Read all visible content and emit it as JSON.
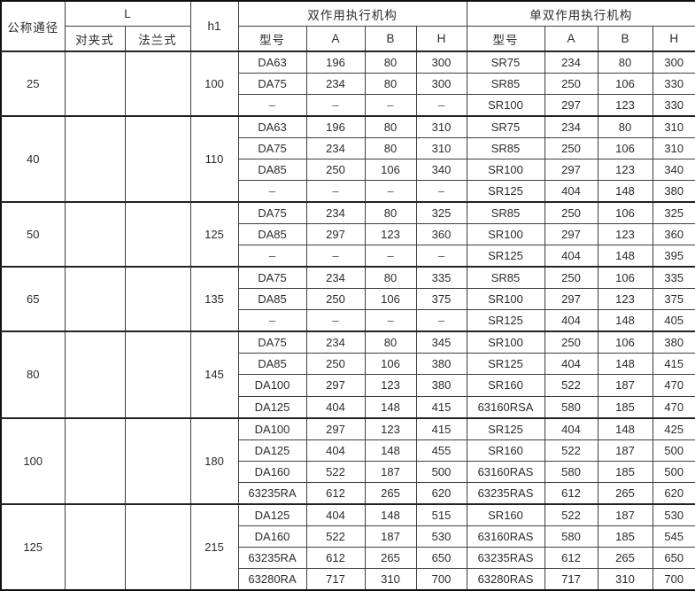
{
  "table": {
    "dash": "–",
    "header": {
      "col_size": "公称通径",
      "col_L": "L",
      "col_wafer": "对夹式",
      "col_flange": "法兰式",
      "col_h1": "h1",
      "group_double": "双作用执行机构",
      "group_single_double": "单双作用执行机构",
      "sub": [
        "型号",
        "A",
        "B",
        "H"
      ]
    },
    "groups": [
      {
        "size": "25",
        "wafer": "",
        "flange": "",
        "h1": "100",
        "rows": [
          [
            "DA63",
            "196",
            "80",
            "300",
            "SR75",
            "234",
            "80",
            "300"
          ],
          [
            "DA75",
            "234",
            "80",
            "300",
            "SR85",
            "250",
            "106",
            "330"
          ],
          [
            "–",
            "–",
            "–",
            "–",
            "SR100",
            "297",
            "123",
            "330"
          ]
        ]
      },
      {
        "size": "40",
        "wafer": "",
        "flange": "",
        "h1": "110",
        "rows": [
          [
            "DA63",
            "196",
            "80",
            "310",
            "SR75",
            "234",
            "80",
            "310"
          ],
          [
            "DA75",
            "234",
            "80",
            "310",
            "SR85",
            "250",
            "106",
            "310"
          ],
          [
            "DA85",
            "250",
            "106",
            "340",
            "SR100",
            "297",
            "123",
            "340"
          ],
          [
            "–",
            "–",
            "–",
            "–",
            "SR125",
            "404",
            "148",
            "380"
          ]
        ]
      },
      {
        "size": "50",
        "wafer": "",
        "flange": "",
        "h1": "125",
        "rows": [
          [
            "DA75",
            "234",
            "80",
            "325",
            "SR85",
            "250",
            "106",
            "325"
          ],
          [
            "DA85",
            "297",
            "123",
            "360",
            "SR100",
            "297",
            "123",
            "360"
          ],
          [
            "–",
            "–",
            "–",
            "–",
            "SR125",
            "404",
            "148",
            "395"
          ]
        ]
      },
      {
        "size": "65",
        "wafer": "",
        "flange": "",
        "h1": "135",
        "rows": [
          [
            "DA75",
            "234",
            "80",
            "335",
            "SR85",
            "250",
            "106",
            "335"
          ],
          [
            "DA85",
            "250",
            "106",
            "375",
            "SR100",
            "297",
            "123",
            "375"
          ],
          [
            "–",
            "–",
            "–",
            "–",
            "SR125",
            "404",
            "148",
            "405"
          ]
        ]
      },
      {
        "size": "80",
        "wafer": "",
        "flange": "",
        "h1": "145",
        "rows": [
          [
            "DA75",
            "234",
            "80",
            "345",
            "SR100",
            "250",
            "106",
            "380"
          ],
          [
            "DA85",
            "250",
            "106",
            "380",
            "SR125",
            "404",
            "148",
            "415"
          ],
          [
            "DA100",
            "297",
            "123",
            "380",
            "SR160",
            "522",
            "187",
            "470"
          ],
          [
            "DA125",
            "404",
            "148",
            "415",
            "63160RSA",
            "580",
            "185",
            "470"
          ]
        ]
      },
      {
        "size": "100",
        "wafer": "",
        "flange": "",
        "h1": "180",
        "rows": [
          [
            "DA100",
            "297",
            "123",
            "415",
            "SR125",
            "404",
            "148",
            "425"
          ],
          [
            "DA125",
            "404",
            "148",
            "455",
            "SR160",
            "522",
            "187",
            "500"
          ],
          [
            "DA160",
            "522",
            "187",
            "500",
            "63160RAS",
            "580",
            "185",
            "500"
          ],
          [
            "63235RA",
            "612",
            "265",
            "620",
            "63235RAS",
            "612",
            "265",
            "620"
          ]
        ]
      },
      {
        "size": "125",
        "wafer": "",
        "flange": "",
        "h1": "215",
        "rows": [
          [
            "DA125",
            "404",
            "148",
            "515",
            "SR160",
            "522",
            "187",
            "530"
          ],
          [
            "DA160",
            "522",
            "187",
            "530",
            "63160RAS",
            "580",
            "185",
            "545"
          ],
          [
            "63235RA",
            "612",
            "265",
            "650",
            "63235RAS",
            "612",
            "265",
            "650"
          ],
          [
            "63280RA",
            "717",
            "310",
            "700",
            "63280RAS",
            "717",
            "310",
            "700"
          ]
        ]
      }
    ]
  },
  "colors": {
    "background": "#ffffff",
    "border": "#3d3d3d",
    "outer_border": "#101010",
    "text": "#2b2b2b"
  }
}
